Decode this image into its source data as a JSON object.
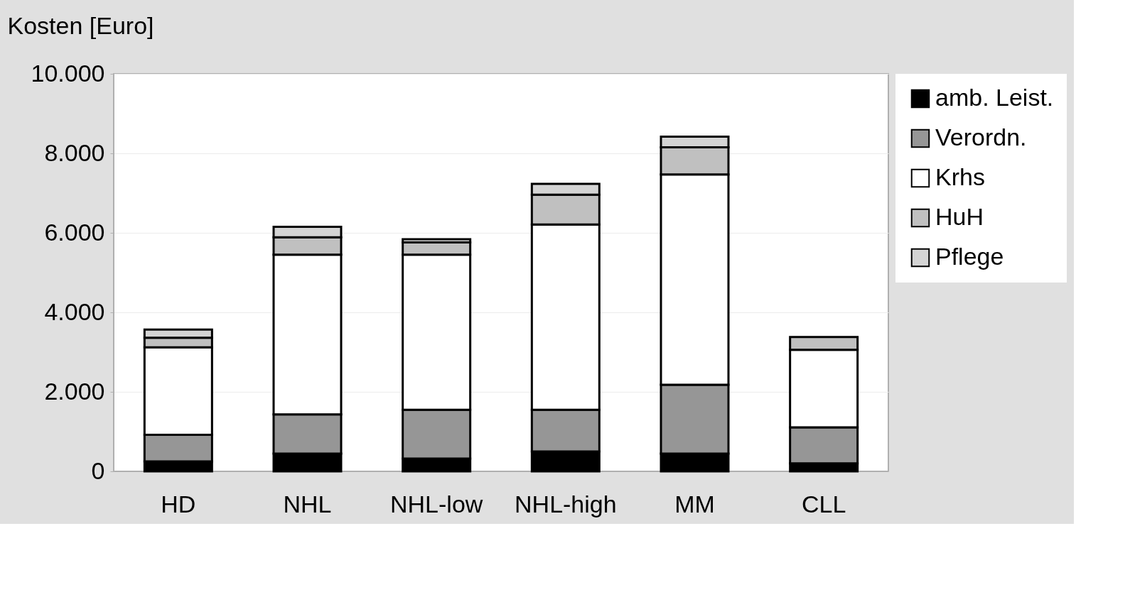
{
  "chart_data": {
    "type": "bar",
    "stacked": true,
    "ylabel": "Kosten [Euro]",
    "categories": [
      "HD",
      "NHL",
      "NHL-low",
      "NHL-high",
      "MM",
      "CLL"
    ],
    "series": [
      {
        "name": "amb. Leist.",
        "color": "#000000",
        "values": [
          250,
          445,
          320,
          500,
          445,
          200
        ]
      },
      {
        "name": "Verordn.",
        "color": "#969696",
        "values": [
          670,
          990,
          1230,
          1050,
          1735,
          905
        ]
      },
      {
        "name": "Krhs",
        "color": "#ffffff",
        "values": [
          2200,
          4015,
          3900,
          4660,
          5290,
          1955
        ]
      },
      {
        "name": "HuH",
        "color": "#c0c0c0",
        "values": [
          240,
          440,
          310,
          750,
          680,
          320
        ]
      },
      {
        "name": "Pflege",
        "color": "#d4d4d4",
        "values": [
          205,
          260,
          80,
          270,
          270,
          null
        ]
      }
    ],
    "ylim": [
      0,
      10000
    ],
    "yticks": [
      0,
      {
        "value": 2000,
        "label": "2.000"
      },
      {
        "value": 4000,
        "label": "4.000"
      },
      {
        "value": 6000,
        "label": "6.000"
      },
      {
        "value": 8000,
        "label": "8.000"
      },
      {
        "value": 10000,
        "label": "10.000"
      }
    ],
    "grid": "y",
    "legend": "right"
  }
}
